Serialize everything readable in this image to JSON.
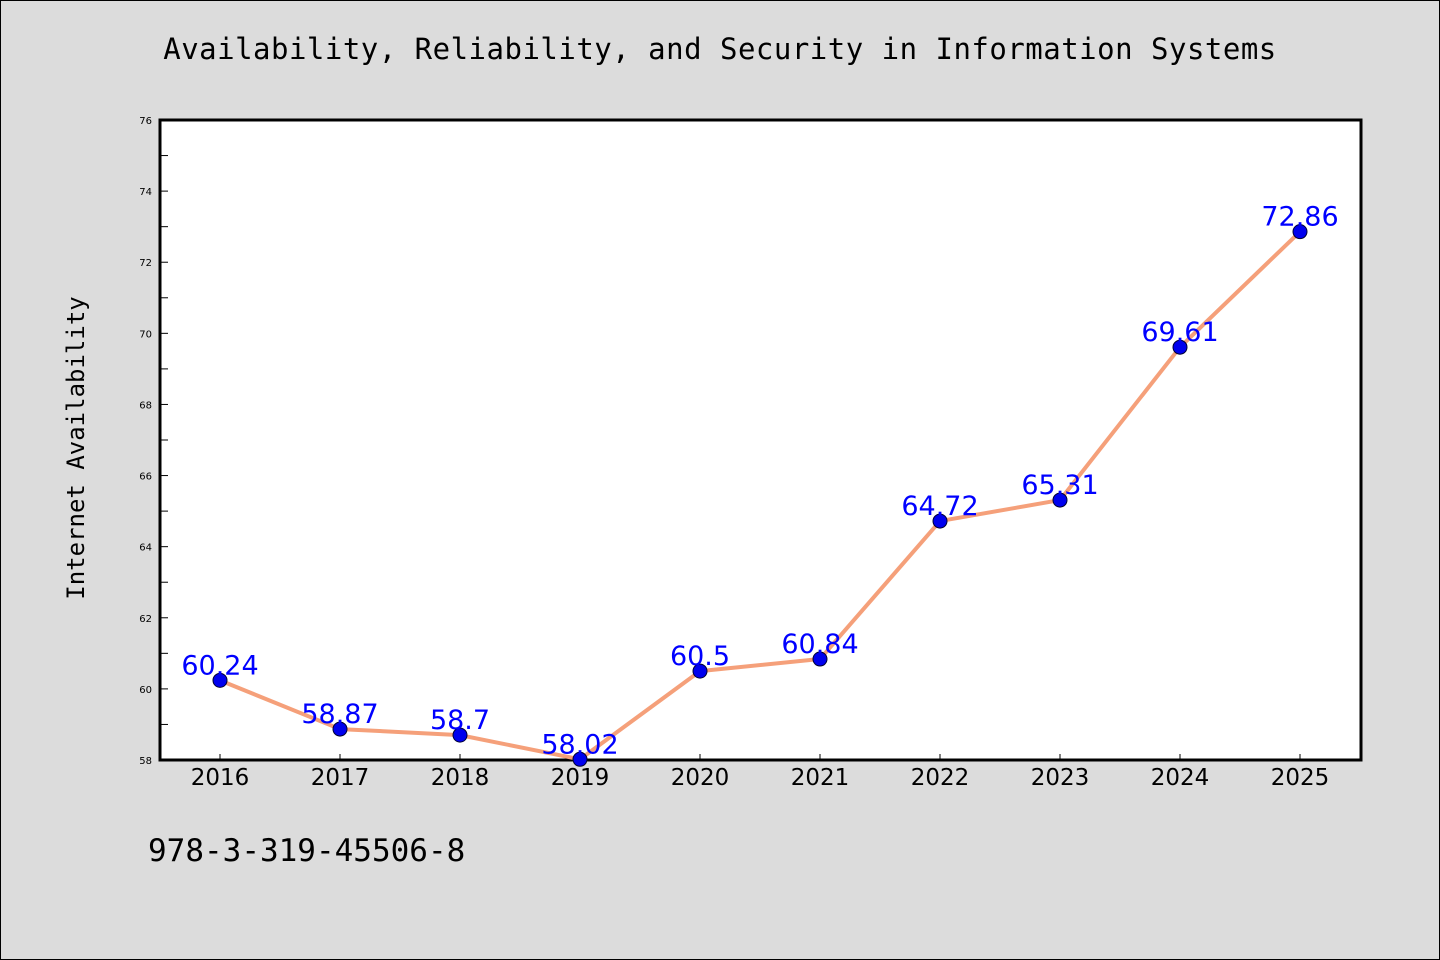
{
  "footer": {
    "isbn": "978-3-319-45506-8"
  },
  "colors": {
    "background": "#dcdcdc",
    "plot_background": "#ffffff",
    "line": "#f5a07a",
    "marker": "#0000ee",
    "label": "#0000ff"
  },
  "chart_data": {
    "type": "line",
    "title": "Availability, Reliability, and Security in Information Systems",
    "xlabel": "",
    "ylabel": "Internet Availability",
    "x": [
      "2016",
      "2017",
      "2018",
      "2019",
      "2020",
      "2021",
      "2022",
      "2023",
      "2024",
      "2025"
    ],
    "series": [
      {
        "values": [
          60.24,
          58.87,
          58.7,
          58.02,
          60.5,
          60.84,
          64.72,
          65.31,
          69.61,
          72.86
        ],
        "labels": [
          "60.24",
          "58.87",
          "58.7",
          "58.02",
          "60.5",
          "60.84",
          "64.72",
          "65.31",
          "69.61",
          "72.86"
        ]
      }
    ],
    "ylim": [
      58,
      76
    ],
    "yticks": [
      58,
      60,
      62,
      64,
      66,
      68,
      70,
      72,
      74,
      76
    ],
    "grid": false,
    "legend": "none"
  }
}
